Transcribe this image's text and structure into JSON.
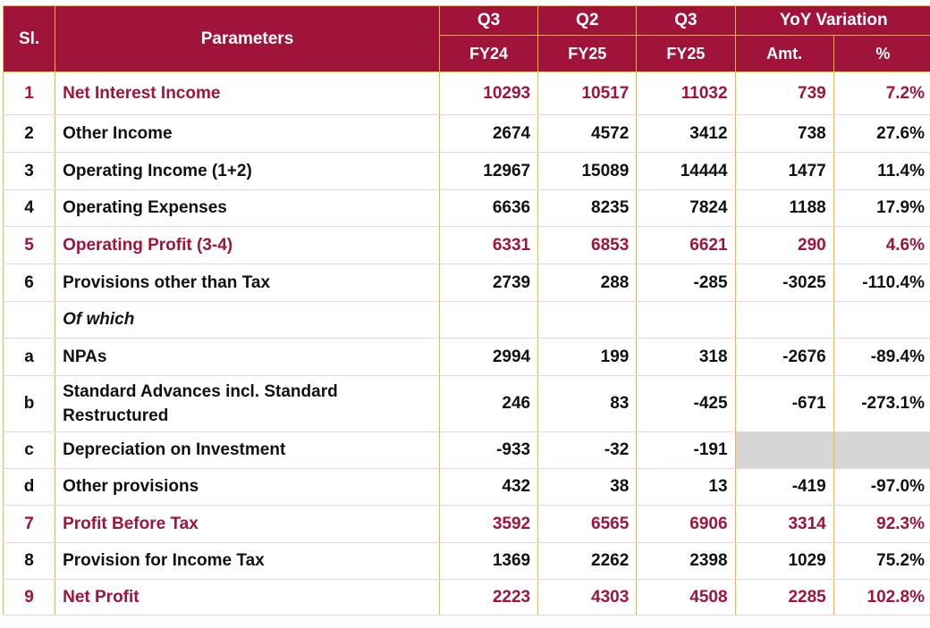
{
  "header": {
    "sl": "Sl.",
    "parameters": "Parameters",
    "cols": [
      {
        "quarter": "Q3",
        "year": "FY24"
      },
      {
        "quarter": "Q2",
        "year": "FY25"
      },
      {
        "quarter": "Q3",
        "year": "FY25"
      }
    ],
    "yoy": "YoY Variation",
    "amt": "Amt.",
    "pct": "%"
  },
  "rows": [
    {
      "sl": "1",
      "param": "Net Interest Income",
      "v1": "10293",
      "v2": "10517",
      "v3": "11032",
      "amt": "739",
      "pct": "7.2%"
    },
    {
      "sl": "2",
      "param": "Other Income",
      "v1": "2674",
      "v2": "4572",
      "v3": "3412",
      "amt": "738",
      "pct": "27.6%"
    },
    {
      "sl": "3",
      "param": "Operating Income (1+2)",
      "v1": "12967",
      "v2": "15089",
      "v3": "14444",
      "amt": "1477",
      "pct": "11.4%"
    },
    {
      "sl": "4",
      "param": "Operating Expenses",
      "v1": "6636",
      "v2": "8235",
      "v3": "7824",
      "amt": "1188",
      "pct": "17.9%"
    },
    {
      "sl": "5",
      "param": "Operating Profit (3-4)",
      "v1": "6331",
      "v2": "6853",
      "v3": "6621",
      "amt": "290",
      "pct": "4.6%"
    },
    {
      "sl": "6",
      "param": "Provisions other than Tax",
      "v1": "2739",
      "v2": "288",
      "v3": "-285",
      "amt": "-3025",
      "pct": "-110.4%"
    },
    {
      "sl": "",
      "param": "Of which",
      "v1": "",
      "v2": "",
      "v3": "",
      "amt": "",
      "pct": ""
    },
    {
      "sl": "a",
      "param": "NPAs",
      "v1": "2994",
      "v2": "199",
      "v3": "318",
      "amt": "-2676",
      "pct": "-89.4%"
    },
    {
      "sl": "b",
      "param": "Standard Advances incl. Standard Restructured",
      "v1": "246",
      "v2": "83",
      "v3": "-425",
      "amt": "-671",
      "pct": "-273.1%"
    },
    {
      "sl": "c",
      "param": "Depreciation on Investment",
      "v1": "-933",
      "v2": "-32",
      "v3": "-191",
      "amt": "",
      "pct": ""
    },
    {
      "sl": "d",
      "param": "Other provisions",
      "v1": "432",
      "v2": "38",
      "v3": "13",
      "amt": "-419",
      "pct": "-97.0%"
    },
    {
      "sl": "7",
      "param": "Profit Before Tax",
      "v1": "3592",
      "v2": "6565",
      "v3": "6906",
      "amt": "3314",
      "pct": "92.3%"
    },
    {
      "sl": "8",
      "param": "Provision for Income Tax",
      "v1": "1369",
      "v2": "2262",
      "v3": "2398",
      "amt": "1029",
      "pct": "75.2%"
    },
    {
      "sl": "9",
      "param": "Net Profit",
      "v1": "2223",
      "v2": "4303",
      "v3": "4508",
      "amt": "2285",
      "pct": "102.8%"
    }
  ],
  "colors": {
    "header_bg": "#a0143c",
    "highlight_text": "#a0143c",
    "grid": "#f2b830",
    "empty_cell": "#d6d6d6"
  }
}
